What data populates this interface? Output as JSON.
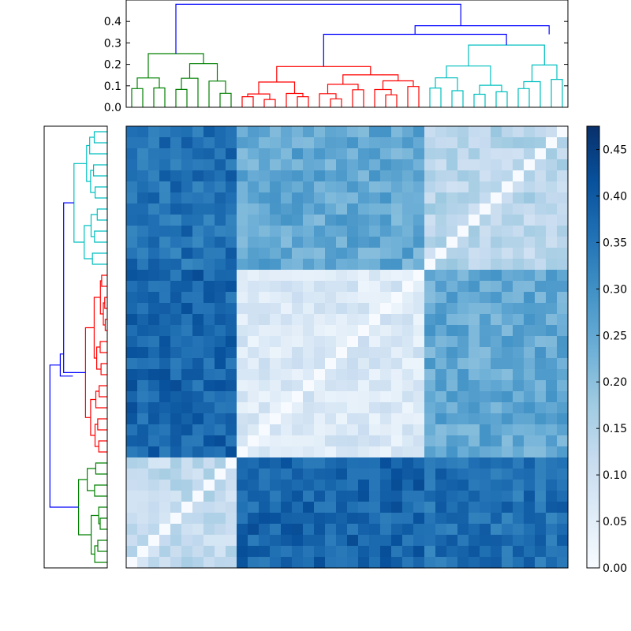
{
  "chart_data": {
    "type": "heatmap",
    "title": "",
    "description": "Clustered distance matrix (40x40) with top and left dendrograms and a colorbar",
    "n": 40,
    "colormap": "Blues",
    "vmin": 0.0,
    "vmax": 0.475,
    "colors": {
      "cluster_green": "#008000",
      "cluster_red": "#ff0000",
      "cluster_cyan": "#00bfbf",
      "link_blue": "#0000ff",
      "axis": "#000000"
    },
    "clusters": [
      {
        "name": "green",
        "size": 10,
        "within": 0.12,
        "height": 0.25
      },
      {
        "name": "red",
        "size": 17,
        "within": 0.07,
        "height": 0.19
      },
      {
        "name": "cyan",
        "size": 13,
        "within": 0.14,
        "height": 0.29
      }
    ],
    "between": [
      {
        "pair": "green-red",
        "value": 0.38
      },
      {
        "pair": "green-cyan",
        "value": 0.36
      },
      {
        "pair": "red-cyan",
        "value": 0.25
      }
    ],
    "top_dendrogram": {
      "ylim": [
        0.0,
        0.5
      ],
      "ticks": [
        "0.0",
        "0.1",
        "0.2",
        "0.3",
        "0.4"
      ],
      "root_height": 0.48,
      "merge_heights": [
        0.38,
        0.34
      ]
    },
    "colorbar": {
      "ticks": [
        "0.00",
        "0.05",
        "0.10",
        "0.15",
        "0.20",
        "0.25",
        "0.30",
        "0.35",
        "0.40",
        "0.45"
      ]
    }
  }
}
